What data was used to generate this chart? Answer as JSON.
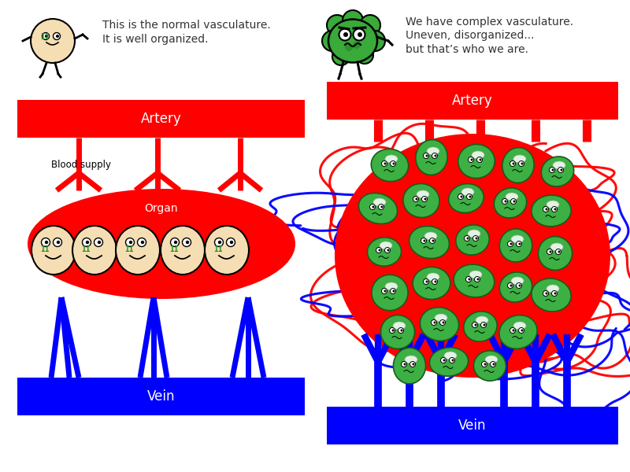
{
  "bg_color": "#ffffff",
  "red": "#ff0000",
  "blue": "#0000ff",
  "green_dark": "#228B22",
  "green_cell": "#3cb043",
  "green_cell_edge": "#1a5a1a",
  "skin": "#f5deb3",
  "white": "#ffffff",
  "black": "#000000",
  "text_color": "#333333",
  "left_artery_label": "Artery",
  "left_vein_label": "Vein",
  "left_organ_label": "Organ",
  "left_blood_label": "Blood supply",
  "right_artery_label": "Artery",
  "right_vein_label": "Vein",
  "normal_text_line1": "This is the normal vasculature.",
  "normal_text_line2": "It is well organized.",
  "tumor_text_line1": "We have complex vasculature.",
  "tumor_text_line2": "Uneven, disorganized...",
  "tumor_text_line3": "but that’s who we are."
}
